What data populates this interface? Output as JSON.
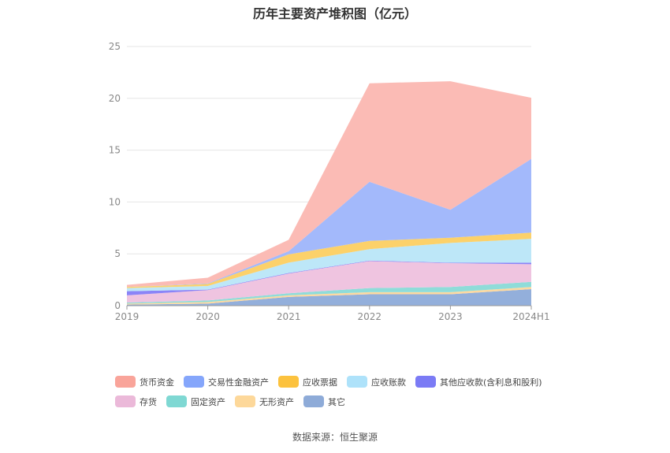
{
  "title": "历年主要资产堆积图（亿元）",
  "source": "数据来源：恒生聚源",
  "chart_data": {
    "type": "area",
    "stacked": true,
    "categories": [
      "2019",
      "2020",
      "2021",
      "2022",
      "2023",
      "2024H1"
    ],
    "ylim": [
      0,
      25
    ],
    "yticks": [
      0,
      5,
      10,
      15,
      20,
      25
    ],
    "grid": true,
    "legend_position": "bottom",
    "series": [
      {
        "name": "其它",
        "color": "#93afdb",
        "values": [
          0.1,
          0.2,
          0.85,
          1.1,
          1.1,
          1.6
        ]
      },
      {
        "name": "无形资产",
        "color": "#fdd9a0",
        "values": [
          0.1,
          0.15,
          0.15,
          0.2,
          0.2,
          0.2
        ]
      },
      {
        "name": "固定资产",
        "color": "#8fdcd9",
        "values": [
          0.1,
          0.15,
          0.2,
          0.4,
          0.5,
          0.5
        ]
      },
      {
        "name": "存货",
        "color": "#efc4e0",
        "values": [
          0.7,
          1.0,
          1.9,
          2.6,
          2.3,
          1.7
        ]
      },
      {
        "name": "其他应收款(含利息和股利)",
        "color": "#8b84f7",
        "values": [
          0.4,
          0.05,
          0.05,
          0.05,
          0.05,
          0.15
        ]
      },
      {
        "name": "应收账款",
        "color": "#bde7f8",
        "values": [
          0.3,
          0.35,
          1.0,
          1.1,
          1.9,
          2.3
        ]
      },
      {
        "name": "应收票据",
        "color": "#fcd16a",
        "values": [
          0.1,
          0.2,
          0.8,
          0.8,
          0.5,
          0.6
        ]
      },
      {
        "name": "交易性金融资产",
        "color": "#a3b9fb",
        "values": [
          0.0,
          0.05,
          0.3,
          5.7,
          2.7,
          7.1
        ]
      },
      {
        "name": "货币资金",
        "color": "#fbbbb5",
        "values": [
          0.2,
          0.55,
          1.1,
          9.5,
          12.4,
          5.9
        ]
      }
    ],
    "legend_order": [
      "货币资金",
      "交易性金融资产",
      "应收票据",
      "应收账款",
      "其他应收款(含利息和股利)",
      "存货",
      "固定资产",
      "无形资产",
      "其它"
    ],
    "legend_colors": {
      "货币资金": "#f9a49a",
      "交易性金融资产": "#85a6fb",
      "应收票据": "#fcc23e",
      "应收账款": "#aee2fa",
      "其他应收款(含利息和股利)": "#7b7bf5",
      "存货": "#ebb9d9",
      "固定资产": "#7fd8d3",
      "无形资产": "#fdd89a",
      "其它": "#8eabd8"
    }
  }
}
